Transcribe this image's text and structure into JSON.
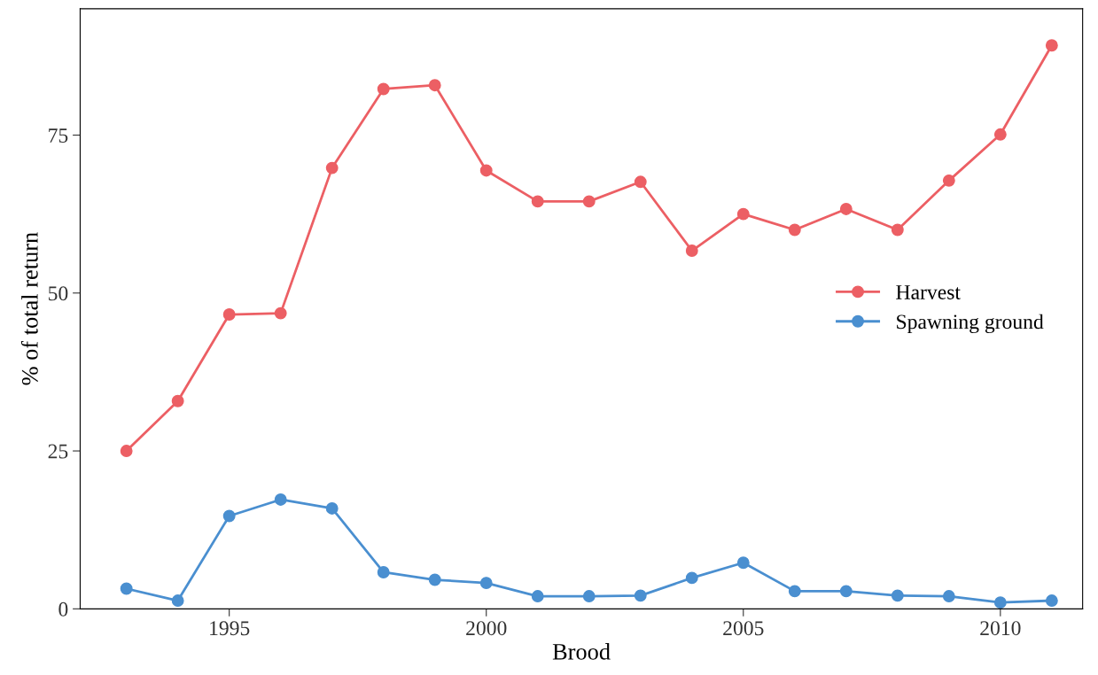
{
  "chart_data": {
    "type": "line",
    "xlabel": "Brood",
    "ylabel": "% of total return",
    "x": [
      1993,
      1994,
      1995,
      1996,
      1997,
      1998,
      1999,
      2000,
      2001,
      2002,
      2003,
      2004,
      2005,
      2006,
      2007,
      2008,
      2009,
      2010,
      2011
    ],
    "series": [
      {
        "name": "Harvest",
        "color": "#ec5f64",
        "values": [
          25.0,
          32.9,
          46.6,
          46.8,
          69.8,
          82.3,
          82.9,
          69.4,
          64.5,
          64.5,
          67.6,
          56.7,
          62.5,
          60.0,
          63.3,
          60.0,
          67.8,
          75.1,
          89.2
        ]
      },
      {
        "name": "Spawning ground",
        "color": "#4a8fd0",
        "values": [
          3.2,
          1.3,
          14.7,
          17.3,
          15.9,
          5.8,
          4.6,
          4.1,
          2.0,
          2.0,
          2.1,
          4.9,
          7.3,
          2.8,
          2.8,
          2.1,
          2.0,
          1.0,
          1.3
        ]
      }
    ],
    "xlim": [
      1992.1,
      2011.6
    ],
    "xticks": [
      1995,
      2000,
      2005,
      2010
    ],
    "ylim": [
      0,
      95
    ],
    "yticks": [
      0,
      25,
      50,
      75
    ],
    "grid": false,
    "legend": "right",
    "marker": "circle",
    "line_style": "solid"
  }
}
